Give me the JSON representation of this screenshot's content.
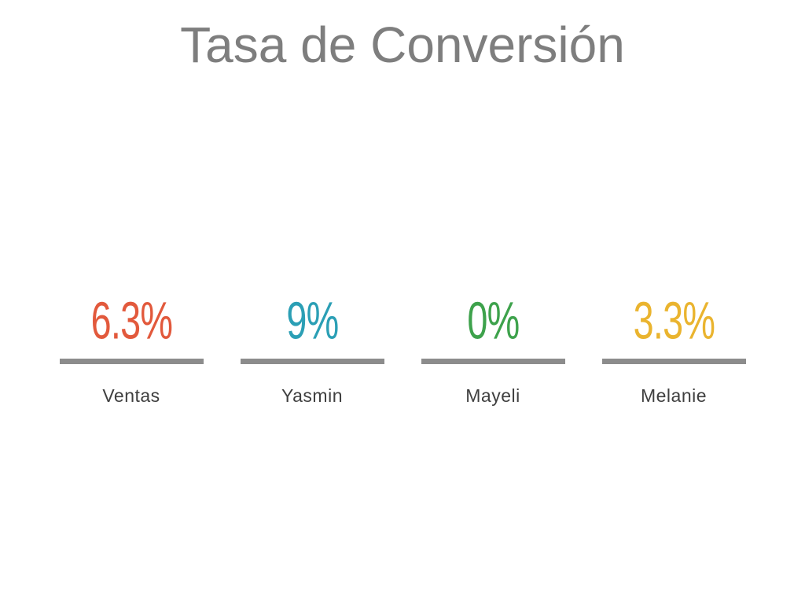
{
  "page": {
    "background_color": "#FFFFFF"
  },
  "header": {
    "title": "Tasa de Conversión",
    "title_color": "#7E7E7E"
  },
  "metrics": [
    {
      "value": "6.3%",
      "label": "Ventas",
      "color": "#E2593C"
    },
    {
      "value": "9%",
      "label": "Yasmin",
      "color": "#2B9FB5"
    },
    {
      "value": "0%",
      "label": "Mayeli",
      "color": "#3EA24C"
    },
    {
      "value": "3.3%",
      "label": "Melanie",
      "color": "#EAB42F"
    }
  ],
  "divider_color": "#8C8C8C",
  "chart_data": {
    "type": "table",
    "title": "Tasa de Conversión",
    "categories": [
      "Ventas",
      "Yasmin",
      "Mayeli",
      "Melanie"
    ],
    "values": [
      6.3,
      9,
      0,
      3.3
    ],
    "value_labels": [
      "6.3%",
      "9%",
      "0%",
      "3.3%"
    ],
    "unit": "%",
    "series_colors": [
      "#E2593C",
      "#2B9FB5",
      "#3EA24C",
      "#EAB42F"
    ],
    "layout": {
      "legend": "none",
      "grid": "off",
      "style": "kpi-metric-row with underline divider per metric"
    }
  }
}
